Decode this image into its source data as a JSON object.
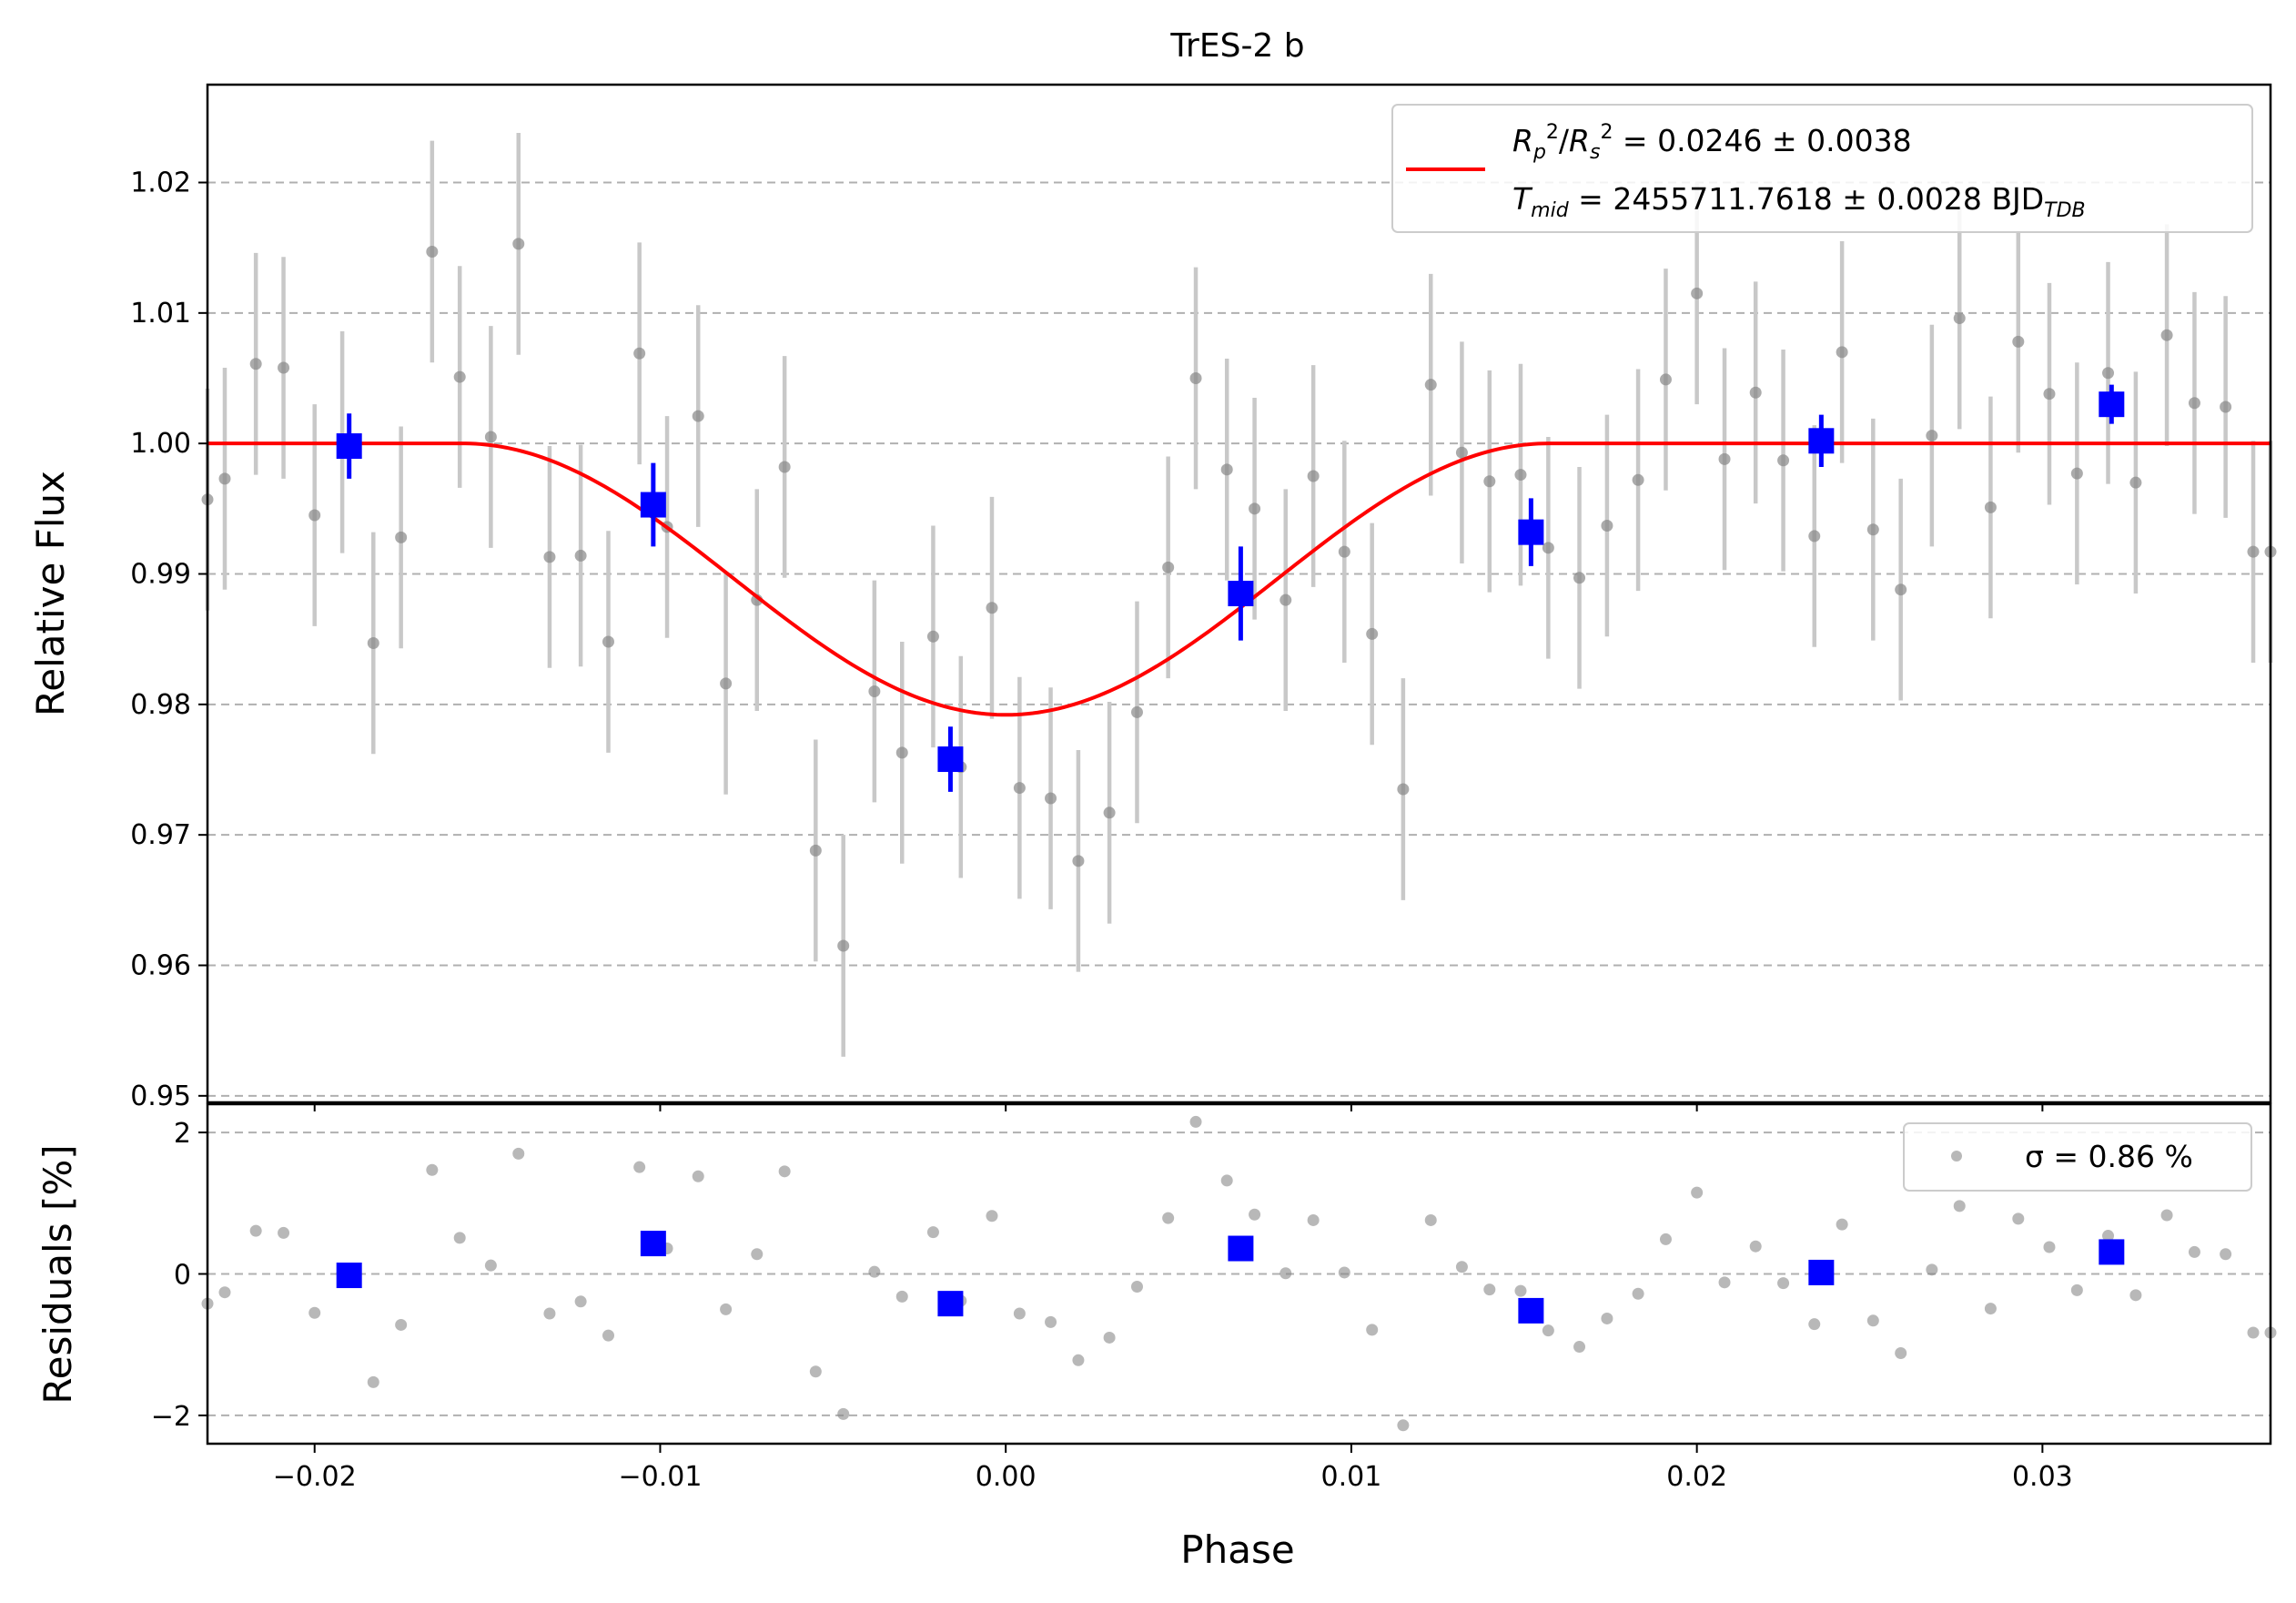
{
  "chart_data": [
    {
      "type": "scatter",
      "title": "TrES-2 b",
      "xlabel": "",
      "ylabel": "Relative Flux",
      "xlim": [
        -0.0231,
        0.0366
      ],
      "ylim": [
        0.9495,
        1.0275
      ],
      "x_ticks": [
        -0.02,
        -0.01,
        0.0,
        0.01,
        0.02,
        0.03
      ],
      "y_ticks": [
        0.95,
        0.96,
        0.97,
        0.98,
        0.99,
        1.0,
        1.01,
        1.02
      ],
      "y_tick_labels": [
        "0.95",
        "0.96",
        "0.97",
        "0.98",
        "0.99",
        "1.00",
        "1.01",
        "1.02"
      ],
      "grid": "horizontal dashed",
      "legend_position": "top-right",
      "legend": {
        "model_line_1": "Rp²/Rs² = 0.0246 ± 0.0038",
        "model_line_2": "Tmid = 2455711.7618 ± 0.0028 BJDTDB"
      },
      "colors": {
        "raw": "#888888",
        "raw_errorbar": "#c8c8c8",
        "binned": "#0000ff",
        "model": "#ff0000"
      },
      "model": {
        "baseline": 1.0,
        "depth_min": 0.9792,
        "ingress_start": -0.0157,
        "egress_end": 0.0157
      },
      "series": [
        {
          "role": "raw",
          "x": [
            -0.0231,
            -0.0226,
            -0.0217,
            -0.0209,
            -0.02,
            -0.0192,
            -0.0183,
            -0.0175,
            -0.0166,
            -0.0158,
            -0.0149,
            -0.0141,
            -0.0132,
            -0.0123,
            -0.0115,
            -0.0106,
            -0.0098,
            -0.0089,
            -0.0081,
            -0.0072,
            -0.0064,
            -0.0055,
            -0.0047,
            -0.0038,
            -0.003,
            -0.0021,
            -0.0013,
            -0.0004,
            0.0004,
            0.0013,
            0.0021,
            0.003,
            0.0038,
            0.0047,
            0.0055,
            0.0064,
            0.0072,
            0.0081,
            0.0089,
            0.0098,
            0.0106,
            0.0115,
            0.0123,
            0.0132,
            0.014,
            0.0149,
            0.0157,
            0.0166,
            0.0174,
            0.0183,
            0.0191,
            0.02,
            0.0208,
            0.0217,
            0.0225,
            0.0234,
            0.0242,
            0.0251,
            0.0259,
            0.0268,
            0.0276,
            0.0285,
            0.0293,
            0.0302,
            0.031,
            0.0319,
            0.0327,
            0.0336,
            0.0344,
            0.0353,
            0.0361,
            0.0366
          ],
          "y": [
            0.9957,
            0.9973,
            1.0061,
            1.0058,
            0.9945,
            1.0001,
            0.9847,
            0.9928,
            1.0147,
            1.0051,
            1.0005,
            1.0153,
            0.9913,
            0.9914,
            0.9848,
            1.0069,
            0.9936,
            1.0021,
            0.9816,
            0.988,
            0.9982,
            0.9688,
            0.9615,
            0.981,
            0.9763,
            0.9852,
            0.9752,
            0.9874,
            0.9736,
            0.9728,
            0.968,
            0.9717,
            0.9794,
            0.9905,
            1.005,
            0.998,
            0.995,
            0.988,
            0.9975,
            0.9917,
            0.9854,
            0.9735,
            1.0045,
            0.9993,
            0.9971,
            0.9976,
            0.992,
            0.9897,
            0.9937,
            0.9972,
            1.0049,
            1.0115,
            0.9988,
            1.0039,
            0.9987,
            0.9929,
            1.007,
            0.9934,
            0.9888,
            1.0006,
            1.0096,
            0.9951,
            1.0078,
            1.0038,
            0.9977,
            1.0054,
            0.997,
            1.0083,
            1.0031,
            1.0028,
            0.9917,
            0.9917
          ],
          "yerr": 0.0085
        },
        {
          "role": "binned",
          "x": [
            -0.019,
            -0.0102,
            -0.0016,
            0.0068,
            0.0152,
            0.0236,
            0.032
          ],
          "y": [
            0.9998,
            0.9953,
            0.9758,
            0.9885,
            0.9932,
            1.0002,
            1.003
          ],
          "yerr": [
            0.0025,
            0.0032,
            0.0025,
            0.0036,
            0.0026,
            0.002,
            0.0015
          ]
        }
      ]
    },
    {
      "type": "scatter",
      "title": "",
      "xlabel": "Phase",
      "ylabel": "Residuals [%]",
      "xlim": [
        -0.0231,
        0.0366
      ],
      "ylim": [
        -2.4,
        2.4
      ],
      "x_ticks": [
        -0.02,
        -0.01,
        0.0,
        0.01,
        0.02,
        0.03
      ],
      "x_tick_labels": [
        "−0.02",
        "−0.01",
        "0.00",
        "0.01",
        "0.02",
        "0.03"
      ],
      "y_ticks": [
        -2,
        0,
        2
      ],
      "y_tick_labels": [
        "−2",
        "0",
        "2"
      ],
      "grid": "horizontal dashed",
      "legend_position": "top-right",
      "legend": {
        "text": "σ = 0.86 %"
      },
      "series": [
        {
          "role": "raw",
          "x": [
            -0.0231,
            -0.0226,
            -0.0217,
            -0.0209,
            -0.02,
            -0.0192,
            -0.0183,
            -0.0175,
            -0.0166,
            -0.0158,
            -0.0149,
            -0.0141,
            -0.0132,
            -0.0123,
            -0.0115,
            -0.0106,
            -0.0098,
            -0.0089,
            -0.0081,
            -0.0072,
            -0.0064,
            -0.0055,
            -0.0047,
            -0.0038,
            -0.003,
            -0.0021,
            -0.0013,
            -0.0004,
            0.0004,
            0.0013,
            0.0021,
            0.003,
            0.0038,
            0.0047,
            0.0055,
            0.0064,
            0.0072,
            0.0081,
            0.0089,
            0.0098,
            0.0106,
            0.0115,
            0.0123,
            0.0132,
            0.014,
            0.0149,
            0.0157,
            0.0166,
            0.0174,
            0.0183,
            0.0191,
            0.02,
            0.0208,
            0.0217,
            0.0225,
            0.0234,
            0.0242,
            0.0251,
            0.0259,
            0.0268,
            0.0276,
            0.0285,
            0.0293,
            0.0302,
            0.031,
            0.0319,
            0.0327,
            0.0336,
            0.0344,
            0.0353,
            0.0361,
            0.0366
          ],
          "y": [
            -0.42,
            -0.26,
            0.61,
            0.58,
            -0.55,
            0.01,
            -1.53,
            -0.72,
            1.47,
            0.51,
            0.12,
            1.7,
            -0.56,
            -0.39,
            -0.87,
            1.51,
            0.36,
            1.38,
            -0.5,
            0.28,
            1.45,
            -1.38,
            -1.98,
            0.03,
            -0.32,
            0.59,
            -0.38,
            0.82,
            -0.56,
            -0.68,
            -1.22,
            -0.9,
            -0.18,
            0.79,
            2.15,
            1.32,
            0.84,
            0.01,
            0.76,
            0.02,
            -0.79,
            -2.14,
            0.76,
            0.1,
            -0.22,
            -0.24,
            -0.8,
            -1.03,
            -0.63,
            -0.28,
            0.49,
            1.15,
            -0.12,
            0.39,
            -0.13,
            -0.71,
            0.7,
            -0.66,
            -1.12,
            0.06,
            0.96,
            -0.49,
            0.78,
            0.38,
            -0.23,
            0.54,
            -0.3,
            0.83,
            0.31,
            0.28,
            -0.83,
            -0.83
          ]
        },
        {
          "role": "binned",
          "x": [
            -0.019,
            -0.0102,
            -0.0016,
            0.0068,
            0.0152,
            0.0236,
            0.032
          ],
          "y": [
            -0.02,
            0.43,
            -0.42,
            0.36,
            -0.52,
            0.02,
            0.31
          ]
        }
      ]
    }
  ]
}
